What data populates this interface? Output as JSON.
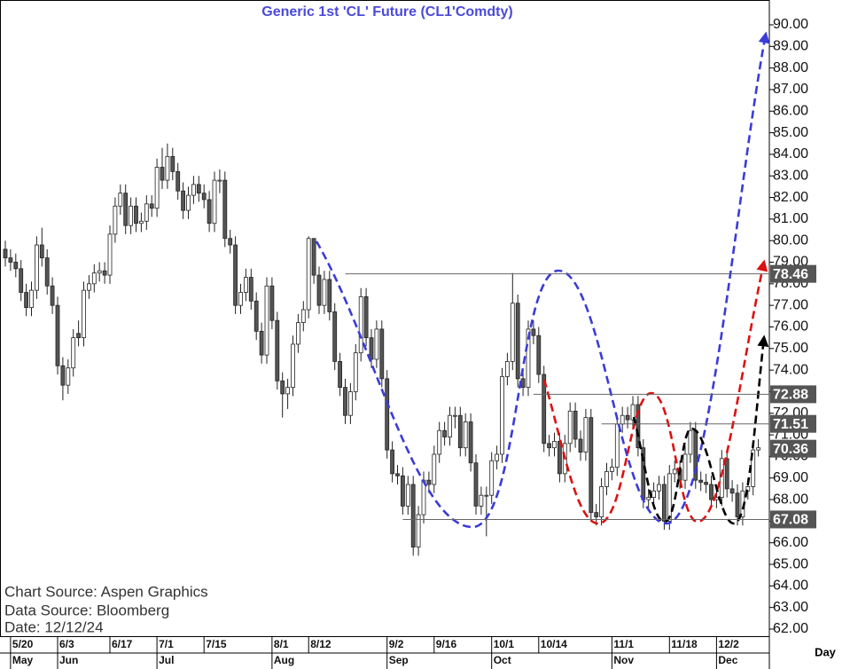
{
  "chart_data": {
    "type": "candlestick",
    "title": "Generic  1st  'CL'  Future  (CL1'Comdty)",
    "notes": [
      "Chart Source:  Aspen  Graphics",
      "Data  Source:  Bloomberg",
      "Date:  12/12/24"
    ],
    "x_label": "Day",
    "ylim": [
      61.63,
      91.15
    ],
    "yticks": [
      {
        "value": 62,
        "label": "62.00"
      },
      {
        "value": 63,
        "label": "63.00"
      },
      {
        "value": 64,
        "label": "64.00"
      },
      {
        "value": 65,
        "label": "65.00"
      },
      {
        "value": 66,
        "label": "66.00"
      },
      {
        "value": 67,
        "label": "67.00"
      },
      {
        "value": 68,
        "label": "68.00"
      },
      {
        "value": 69,
        "label": "69.00"
      },
      {
        "value": 70,
        "label": "70.00"
      },
      {
        "value": 71,
        "label": "71.00"
      },
      {
        "value": 72,
        "label": "72.00"
      },
      {
        "value": 73,
        "label": "73.00"
      },
      {
        "value": 74,
        "label": "74.00"
      },
      {
        "value": 75,
        "label": "75.00"
      },
      {
        "value": 76,
        "label": "76.00"
      },
      {
        "value": 77,
        "label": "77.00"
      },
      {
        "value": 78,
        "label": "78.00"
      },
      {
        "value": 79,
        "label": "79.00"
      },
      {
        "value": 80,
        "label": "80.00"
      },
      {
        "value": 81,
        "label": "81.00"
      },
      {
        "value": 82,
        "label": "82.00"
      },
      {
        "value": 83,
        "label": "83.00"
      },
      {
        "value": 84,
        "label": "84.00"
      },
      {
        "value": 85,
        "label": "85.00"
      },
      {
        "value": 86,
        "label": "86.00"
      },
      {
        "value": 87,
        "label": "87.00"
      },
      {
        "value": 88,
        "label": "88.00"
      },
      {
        "value": 89,
        "label": "89.00"
      },
      {
        "value": 90,
        "label": "90.00"
      }
    ],
    "xticks": [
      {
        "value": 1,
        "label": "5/20"
      },
      {
        "value": 10,
        "label": "6/3"
      },
      {
        "value": 20,
        "label": "6/17"
      },
      {
        "value": 29,
        "label": "7/1"
      },
      {
        "value": 38,
        "label": "7/15"
      },
      {
        "value": 51,
        "label": "8/1"
      },
      {
        "value": 58,
        "label": "8/12"
      },
      {
        "value": 73,
        "label": "9/2"
      },
      {
        "value": 82,
        "label": "9/16"
      },
      {
        "value": 93,
        "label": "10/1"
      },
      {
        "value": 102,
        "label": "10/14"
      },
      {
        "value": 116,
        "label": "11/1"
      },
      {
        "value": 127,
        "label": "11/18"
      },
      {
        "value": 136,
        "label": "12/2"
      }
    ],
    "months": [
      {
        "value": 1,
        "label": "May"
      },
      {
        "value": 10,
        "label": "Jun"
      },
      {
        "value": 29,
        "label": "Jul"
      },
      {
        "value": 51,
        "label": "Aug"
      },
      {
        "value": 73,
        "label": "Sep"
      },
      {
        "value": 93,
        "label": "Oct"
      },
      {
        "value": 116,
        "label": "Nov"
      },
      {
        "value": 136,
        "label": "Dec"
      }
    ],
    "levels": [
      {
        "value": 78.46,
        "from": 65
      },
      {
        "value": 72.88,
        "from": 101
      },
      {
        "value": 71.51,
        "from": 114
      },
      {
        "value": 70.36
      },
      {
        "value": 67.08,
        "from": 76
      }
    ],
    "candles": [
      [
        79.6,
        80.0,
        78.8,
        79.2
      ],
      [
        79.2,
        79.6,
        78.6,
        79.0
      ],
      [
        79.0,
        79.4,
        78.3,
        78.7
      ],
      [
        78.7,
        79.1,
        77.2,
        77.6
      ],
      [
        77.6,
        78.0,
        76.5,
        76.9
      ],
      [
        76.9,
        78.1,
        76.5,
        77.7
      ],
      [
        77.7,
        80.2,
        77.3,
        79.8
      ],
      [
        79.8,
        80.6,
        78.8,
        79.2
      ],
      [
        79.2,
        79.6,
        77.5,
        77.9
      ],
      [
        77.9,
        78.3,
        76.6,
        77.0
      ],
      [
        77.0,
        77.4,
        73.8,
        74.2
      ],
      [
        74.2,
        74.6,
        72.6,
        73.3
      ],
      [
        73.3,
        74.5,
        72.9,
        74.1
      ],
      [
        74.1,
        75.9,
        73.7,
        75.5
      ],
      [
        75.7,
        76.3,
        75.1,
        75.5
      ],
      [
        75.5,
        78.1,
        75.1,
        77.7
      ],
      [
        77.7,
        78.4,
        77.3,
        78.0
      ],
      [
        78.0,
        78.9,
        77.6,
        78.5
      ],
      [
        78.5,
        79.0,
        78.1,
        78.6
      ],
      [
        78.6,
        79.0,
        78.0,
        78.4
      ],
      [
        78.4,
        80.7,
        78.0,
        80.3
      ],
      [
        80.3,
        82.0,
        79.9,
        81.6
      ],
      [
        81.6,
        82.6,
        81.2,
        82.2
      ],
      [
        82.2,
        82.6,
        80.3,
        80.7
      ],
      [
        80.7,
        82.0,
        80.3,
        81.6
      ],
      [
        81.6,
        82.0,
        80.4,
        80.8
      ],
      [
        80.8,
        81.3,
        80.4,
        80.9
      ],
      [
        80.9,
        82.1,
        80.5,
        81.7
      ],
      [
        81.7,
        82.1,
        81.1,
        81.5
      ],
      [
        81.5,
        83.8,
        81.1,
        83.4
      ],
      [
        83.4,
        84.3,
        82.4,
        82.8
      ],
      [
        82.8,
        84.5,
        82.4,
        83.9
      ],
      [
        83.9,
        84.3,
        82.8,
        83.2
      ],
      [
        83.2,
        83.6,
        81.9,
        82.3
      ],
      [
        82.3,
        82.7,
        81.0,
        81.4
      ],
      [
        81.4,
        82.5,
        81.0,
        82.1
      ],
      [
        82.1,
        83.0,
        81.7,
        82.6
      ],
      [
        82.6,
        83.0,
        81.8,
        82.2
      ],
      [
        82.2,
        82.6,
        81.5,
        81.9
      ],
      [
        81.9,
        82.3,
        80.4,
        80.8
      ],
      [
        80.8,
        83.2,
        80.4,
        82.8
      ],
      [
        82.8,
        83.3,
        82.2,
        82.8
      ],
      [
        82.8,
        83.2,
        79.7,
        80.1
      ],
      [
        80.1,
        80.5,
        79.4,
        79.8
      ],
      [
        79.8,
        80.2,
        76.6,
        77.0
      ],
      [
        77.0,
        78.0,
        76.6,
        77.6
      ],
      [
        77.6,
        78.7,
        77.2,
        78.3
      ],
      [
        78.3,
        78.7,
        76.8,
        77.2
      ],
      [
        77.2,
        77.6,
        75.4,
        75.8
      ],
      [
        75.8,
        76.2,
        74.3,
        74.7
      ],
      [
        74.7,
        78.3,
        74.3,
        77.9
      ],
      [
        77.9,
        78.3,
        75.9,
        76.3
      ],
      [
        76.3,
        76.7,
        73.1,
        73.5
      ],
      [
        73.5,
        73.9,
        71.8,
        72.9
      ],
      [
        72.9,
        73.6,
        72.2,
        73.2
      ],
      [
        73.2,
        75.6,
        72.8,
        75.2
      ],
      [
        75.2,
        76.6,
        74.8,
        76.2
      ],
      [
        76.2,
        77.2,
        75.8,
        76.8
      ],
      [
        76.8,
        80.2,
        76.4,
        80.1
      ],
      [
        80.1,
        80.1,
        78.0,
        78.4
      ],
      [
        78.4,
        78.8,
        76.6,
        77.0
      ],
      [
        77.0,
        78.6,
        76.6,
        78.2
      ],
      [
        78.2,
        78.6,
        76.3,
        76.7
      ],
      [
        76.7,
        77.1,
        74.0,
        74.4
      ],
      [
        74.4,
        74.8,
        72.8,
        73.2
      ],
      [
        73.2,
        73.6,
        71.5,
        71.9
      ],
      [
        71.9,
        73.4,
        71.5,
        73.0
      ],
      [
        73.0,
        75.2,
        72.6,
        74.8
      ],
      [
        74.8,
        77.8,
        74.4,
        77.4
      ],
      [
        77.4,
        77.8,
        75.1,
        75.5
      ],
      [
        75.5,
        75.9,
        74.1,
        74.5
      ],
      [
        74.5,
        76.3,
        74.1,
        75.9
      ],
      [
        75.9,
        76.3,
        73.2,
        73.6
      ],
      [
        73.6,
        74.0,
        69.9,
        70.3
      ],
      [
        70.3,
        70.7,
        68.8,
        69.2
      ],
      [
        69.2,
        69.6,
        68.7,
        69.1
      ],
      [
        69.1,
        69.5,
        67.3,
        67.7
      ],
      [
        67.7,
        69.1,
        67.3,
        68.7
      ],
      [
        68.7,
        69.1,
        65.4,
        65.8
      ],
      [
        65.8,
        67.7,
        65.4,
        67.3
      ],
      [
        67.3,
        69.3,
        66.9,
        68.9
      ],
      [
        68.9,
        69.3,
        68.3,
        68.7
      ],
      [
        68.7,
        70.5,
        68.3,
        70.1
      ],
      [
        70.1,
        71.6,
        69.7,
        71.2
      ],
      [
        71.2,
        71.6,
        70.5,
        70.9
      ],
      [
        70.9,
        72.3,
        70.5,
        71.9
      ],
      [
        71.9,
        72.3,
        71.3,
        71.9
      ],
      [
        71.9,
        72.3,
        70.0,
        70.4
      ],
      [
        70.4,
        72.0,
        70.0,
        71.6
      ],
      [
        71.6,
        72.0,
        69.3,
        69.7
      ],
      [
        69.7,
        70.1,
        67.3,
        67.7
      ],
      [
        67.7,
        68.6,
        67.3,
        68.2
      ],
      [
        68.2,
        68.6,
        66.3,
        68.2
      ],
      [
        68.2,
        70.2,
        67.8,
        69.8
      ],
      [
        69.8,
        70.5,
        69.4,
        70.1
      ],
      [
        70.1,
        74.1,
        69.7,
        73.7
      ],
      [
        73.7,
        74.8,
        73.3,
        74.4
      ],
      [
        74.4,
        78.5,
        74.0,
        77.1
      ],
      [
        77.1,
        77.5,
        73.2,
        73.6
      ],
      [
        73.6,
        74.0,
        72.8,
        73.2
      ],
      [
        73.2,
        76.3,
        72.8,
        75.9
      ],
      [
        75.9,
        76.3,
        75.2,
        75.6
      ],
      [
        75.6,
        76.0,
        73.4,
        73.8
      ],
      [
        73.8,
        74.2,
        70.2,
        70.6
      ],
      [
        70.6,
        71.0,
        70.0,
        70.4
      ],
      [
        70.4,
        71.1,
        70.0,
        70.7
      ],
      [
        70.7,
        71.1,
        68.8,
        69.2
      ],
      [
        69.2,
        71.0,
        68.8,
        70.6
      ],
      [
        70.6,
        72.5,
        70.2,
        72.1
      ],
      [
        72.1,
        72.5,
        70.4,
        70.8
      ],
      [
        70.8,
        71.2,
        69.8,
        70.2
      ],
      [
        70.2,
        72.2,
        69.8,
        71.8
      ],
      [
        71.8,
        72.2,
        67.0,
        67.4
      ],
      [
        67.4,
        67.8,
        66.8,
        67.2
      ],
      [
        67.2,
        69.0,
        66.8,
        68.6
      ],
      [
        68.6,
        69.7,
        68.2,
        69.3
      ],
      [
        69.3,
        69.9,
        68.9,
        69.5
      ],
      [
        69.5,
        71.9,
        69.1,
        71.5
      ],
      [
        71.5,
        72.3,
        71.1,
        71.9
      ],
      [
        71.9,
        72.3,
        71.3,
        71.7
      ],
      [
        71.7,
        72.8,
        71.3,
        72.4
      ],
      [
        72.4,
        72.8,
        70.0,
        70.4
      ],
      [
        70.4,
        70.8,
        67.6,
        68.0
      ],
      [
        68.0,
        68.5,
        67.6,
        68.1
      ],
      [
        68.1,
        68.8,
        67.7,
        68.4
      ],
      [
        68.4,
        69.1,
        68.0,
        68.7
      ],
      [
        68.7,
        69.1,
        66.6,
        67.0
      ],
      [
        67.0,
        69.6,
        66.6,
        69.2
      ],
      [
        69.2,
        69.8,
        68.8,
        69.4
      ],
      [
        69.4,
        69.8,
        68.5,
        68.9
      ],
      [
        68.9,
        70.5,
        68.5,
        70.1
      ],
      [
        70.1,
        71.6,
        69.7,
        71.2
      ],
      [
        71.2,
        71.6,
        68.5,
        68.9
      ],
      [
        68.9,
        69.3,
        68.4,
        68.8
      ],
      [
        68.8,
        69.2,
        68.3,
        68.7
      ],
      [
        68.7,
        69.1,
        67.6,
        68.0
      ],
      [
        68.0,
        68.5,
        67.6,
        68.1
      ],
      [
        68.1,
        70.3,
        67.7,
        69.9
      ],
      [
        69.9,
        70.3,
        68.1,
        68.5
      ],
      [
        68.5,
        68.9,
        67.9,
        68.3
      ],
      [
        68.3,
        68.7,
        66.8,
        67.2
      ],
      [
        67.2,
        68.8,
        66.8,
        68.4
      ],
      [
        68.4,
        69.0,
        68.0,
        68.6
      ],
      [
        68.6,
        70.7,
        68.2,
        70.3
      ],
      [
        70.3,
        70.8,
        70.0,
        70.4
      ]
    ]
  }
}
